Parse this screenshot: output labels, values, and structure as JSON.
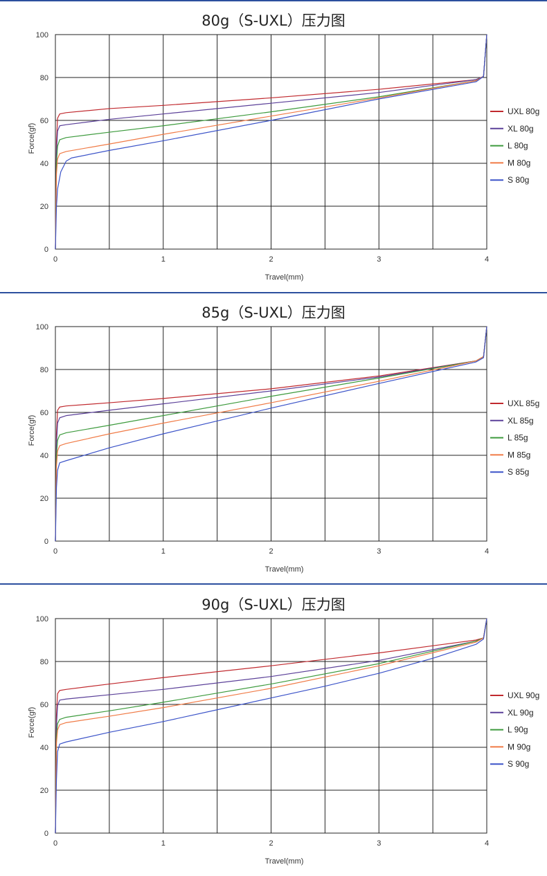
{
  "chart_data": [
    {
      "type": "line",
      "title": "80g（S-UXL）压力图",
      "xlabel": "Travel(mm)",
      "ylabel": "Force(gf)",
      "xlim": [
        0,
        4
      ],
      "ylim": [
        0,
        100
      ],
      "xticks": [
        "0",
        "1",
        "2",
        "3",
        "4"
      ],
      "yticks": [
        "0",
        "20",
        "40",
        "60",
        "80",
        "100"
      ],
      "grid": true,
      "legend": "right",
      "series": [
        {
          "name": "UXL 80g",
          "color": "#c0282d",
          "x": [
            0,
            0.01,
            0.02,
            0.04,
            0.1,
            0.5,
            1,
            2,
            3,
            3.9,
            3.97,
            4.0
          ],
          "y": [
            0,
            50,
            61,
            63,
            63.6,
            65.5,
            67,
            70.5,
            74.5,
            79,
            80.5,
            100
          ]
        },
        {
          "name": "XL 80g",
          "color": "#5a3f98",
          "x": [
            0,
            0.01,
            0.02,
            0.04,
            0.1,
            0.5,
            1,
            2,
            3,
            3.9,
            3.97,
            4.0
          ],
          "y": [
            0,
            45,
            55,
            57.5,
            58,
            60.5,
            63,
            68,
            73,
            79,
            80.5,
            100
          ]
        },
        {
          "name": "L 80g",
          "color": "#3c9a3c",
          "x": [
            0,
            0.01,
            0.02,
            0.04,
            0.1,
            0.5,
            1,
            2,
            3,
            3.9,
            3.97,
            4.0
          ],
          "y": [
            0,
            40,
            48,
            51,
            52,
            54.5,
            57.5,
            64,
            71,
            78.5,
            80.5,
            100
          ]
        },
        {
          "name": "M 80g",
          "color": "#f07a45",
          "x": [
            0,
            0.01,
            0.02,
            0.04,
            0.1,
            0.5,
            1,
            2,
            3,
            3.9,
            3.97,
            4.0
          ],
          "y": [
            0,
            35,
            42,
            44.5,
            45.5,
            49,
            53.5,
            62,
            70.5,
            78.5,
            80.5,
            100
          ]
        },
        {
          "name": "S 80g",
          "color": "#3a52c8",
          "x": [
            0,
            0.01,
            0.02,
            0.05,
            0.1,
            0.15,
            0.5,
            1,
            2,
            3,
            3.9,
            3.97,
            4.0
          ],
          "y": [
            0,
            20,
            28,
            36,
            41,
            42.5,
            46,
            50.5,
            60,
            70,
            78,
            80.5,
            100
          ]
        }
      ]
    },
    {
      "type": "line",
      "title": "85g（S-UXL）压力图",
      "xlabel": "Travel(mm)",
      "ylabel": "Force(gf)",
      "xlim": [
        0,
        4
      ],
      "ylim": [
        0,
        100
      ],
      "xticks": [
        "0",
        "1",
        "2",
        "3",
        "4"
      ],
      "yticks": [
        "0",
        "20",
        "40",
        "60",
        "80",
        "100"
      ],
      "grid": true,
      "legend": "right",
      "series": [
        {
          "name": "UXL 85g",
          "color": "#c0282d",
          "x": [
            0,
            0.01,
            0.02,
            0.04,
            0.1,
            0.5,
            1,
            2,
            3,
            3.9,
            3.97,
            4.0
          ],
          "y": [
            0,
            50,
            61,
            62.5,
            63,
            64.5,
            66.5,
            71,
            77,
            84,
            86,
            100
          ]
        },
        {
          "name": "XL 85g",
          "color": "#5a3f98",
          "x": [
            0,
            0.01,
            0.02,
            0.04,
            0.1,
            0.5,
            1,
            2,
            3,
            3.9,
            3.97,
            4.0
          ],
          "y": [
            0,
            45,
            55,
            57.5,
            58.5,
            61,
            64,
            70,
            76.5,
            84,
            86,
            100
          ]
        },
        {
          "name": "L 85g",
          "color": "#3c9a3c",
          "x": [
            0,
            0.01,
            0.02,
            0.04,
            0.1,
            0.5,
            1,
            2,
            3,
            3.9,
            3.97,
            4.0
          ],
          "y": [
            0,
            40,
            47,
            49.5,
            50.5,
            54,
            58.5,
            67.5,
            76,
            84,
            86,
            100
          ]
        },
        {
          "name": "M 85g",
          "color": "#f07a45",
          "x": [
            0,
            0.01,
            0.02,
            0.04,
            0.1,
            0.5,
            1,
            2,
            3,
            3.9,
            3.97,
            4.0
          ],
          "y": [
            0,
            35,
            42,
            44.5,
            45.5,
            50,
            55,
            64.5,
            74.5,
            84,
            86,
            100
          ]
        },
        {
          "name": "S 85g",
          "color": "#3a52c8",
          "x": [
            0,
            0.01,
            0.02,
            0.04,
            0.1,
            0.5,
            1,
            2,
            3,
            3.9,
            3.97,
            4.0
          ],
          "y": [
            0,
            25,
            33,
            36.5,
            37.5,
            43.5,
            50,
            62,
            73.5,
            83.5,
            85.5,
            100
          ]
        }
      ]
    },
    {
      "type": "line",
      "title": "90g（S-UXL）压力图",
      "xlabel": "Travel(mm)",
      "ylabel": "Force(gf)",
      "xlim": [
        0,
        4
      ],
      "ylim": [
        0,
        100
      ],
      "xticks": [
        "0",
        "1",
        "2",
        "3",
        "4"
      ],
      "yticks": [
        "0",
        "20",
        "40",
        "60",
        "80",
        "100"
      ],
      "grid": true,
      "legend": "right",
      "series": [
        {
          "name": "UXL 90g",
          "color": "#c0282d",
          "x": [
            0,
            0.01,
            0.02,
            0.04,
            0.1,
            0.5,
            1,
            2,
            3,
            3.9,
            3.97,
            4.0
          ],
          "y": [
            0,
            55,
            65,
            66.5,
            67,
            69.5,
            72.5,
            78,
            84,
            90,
            91,
            100
          ]
        },
        {
          "name": "XL 90g",
          "color": "#5a3f98",
          "x": [
            0,
            0.01,
            0.02,
            0.04,
            0.1,
            0.5,
            1,
            2,
            3,
            3.9,
            3.97,
            4.0
          ],
          "y": [
            0,
            50,
            59.5,
            62,
            62.5,
            64.5,
            67,
            73,
            80.5,
            89.5,
            91,
            100
          ]
        },
        {
          "name": "L 90g",
          "color": "#3c9a3c",
          "x": [
            0,
            0.01,
            0.02,
            0.04,
            0.1,
            0.5,
            1,
            2,
            3,
            3.9,
            3.97,
            4.0
          ],
          "y": [
            0,
            45,
            51,
            53,
            54,
            57,
            61,
            69.5,
            79,
            89.5,
            91,
            100
          ]
        },
        {
          "name": "M 90g",
          "color": "#f07a45",
          "x": [
            0,
            0.01,
            0.02,
            0.04,
            0.1,
            0.5,
            1,
            2,
            3,
            3.9,
            3.97,
            4.0
          ],
          "y": [
            0,
            42,
            48,
            50.5,
            51.5,
            54.5,
            58.5,
            67.5,
            78,
            89,
            91,
            100
          ]
        },
        {
          "name": "S 90g",
          "color": "#3a52c8",
          "x": [
            0,
            0.01,
            0.02,
            0.04,
            0.1,
            0.5,
            1,
            1.5,
            2,
            2.5,
            3,
            3.5,
            3.9,
            3.97,
            4.0
          ],
          "y": [
            0,
            25,
            38,
            41.5,
            42.5,
            47,
            52,
            57.5,
            63,
            68.5,
            74.5,
            81.5,
            88,
            90.5,
            100
          ]
        }
      ]
    }
  ]
}
